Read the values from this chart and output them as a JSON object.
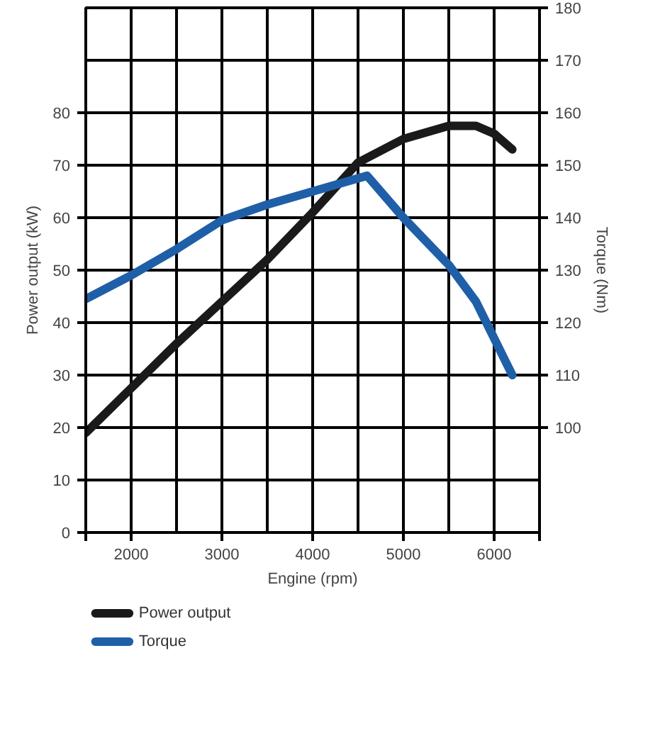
{
  "chart_data": {
    "type": "line",
    "xlabel": "Engine (rpm)",
    "ylabel": "Power output (kW)",
    "y2label": "Torque (Nm)",
    "xlim": [
      1500,
      6500
    ],
    "xticks": [
      {
        "value": 1500,
        "label": null
      },
      2000,
      3000,
      4000,
      5000,
      6000,
      {
        "value": 6500,
        "label": null
      }
    ],
    "ylim": [
      0,
      100
    ],
    "yticks": [
      0,
      10,
      20,
      30,
      40,
      50,
      60,
      70,
      80
    ],
    "y2lim": [
      80,
      180
    ],
    "y2ticks": [
      100,
      110,
      120,
      130,
      140,
      150,
      160,
      170,
      180
    ],
    "grid": true,
    "legend": "bottom left",
    "line_style": "solid",
    "series": [
      {
        "name": "Power output",
        "color": "#1a1a1a",
        "x": [
          1500,
          2000,
          2500,
          3000,
          3500,
          4000,
          4500,
          5000,
          5500,
          5800,
          6000,
          6200
        ],
        "values": [
          19,
          27.5,
          36,
          44,
          52,
          61,
          70.5,
          75,
          77.5,
          77.5,
          76,
          73
        ]
      },
      {
        "name": "Torque",
        "color": "#1f5fa8",
        "axis": "y2",
        "x": [
          1500,
          2000,
          2500,
          3000,
          3500,
          4000,
          4600,
          5000,
          5500,
          5800,
          6200
        ],
        "values": [
          124.5,
          129,
          134,
          139.5,
          142.5,
          145,
          148,
          140,
          131,
          124,
          110
        ]
      }
    ]
  }
}
